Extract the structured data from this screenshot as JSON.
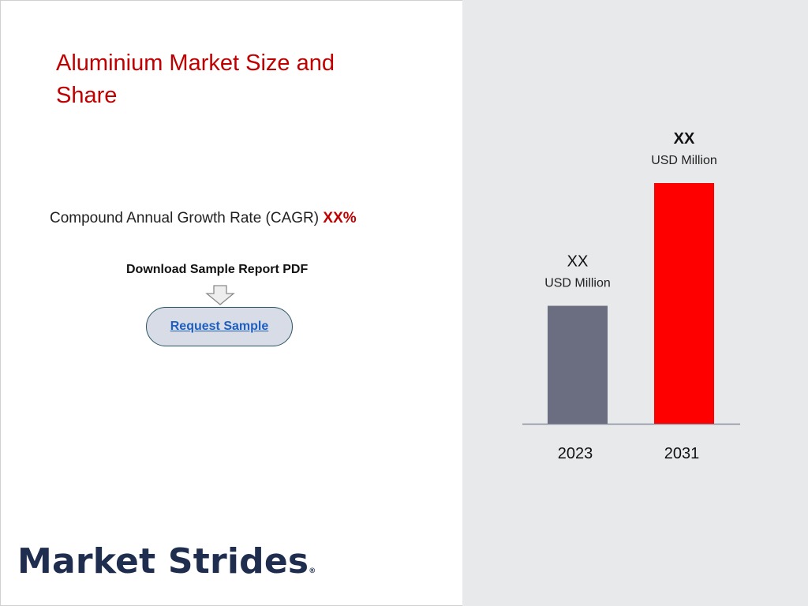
{
  "page": {
    "title": "Aluminium Market Size and Share",
    "cagr_label": "Compound Annual Growth Rate (CAGR)",
    "cagr_value": "XX%",
    "download_label": "Download Sample Report PDF",
    "request_button": "Request Sample",
    "logo_text": "Market Strides",
    "logo_mark": "®"
  },
  "colors": {
    "title": "#c00000",
    "accent": "#c00000",
    "panel_bg": "#e8e9eb",
    "bar_2023": "#6b6e80",
    "bar_2031": "#ff0000",
    "logo": "#1f2d4e"
  },
  "chart_data": {
    "type": "bar",
    "categories": [
      "2023",
      "2031"
    ],
    "values": [
      49,
      100
    ],
    "value_labels": [
      "XX",
      "XX"
    ],
    "unit_labels": [
      "USD Million",
      "USD Million"
    ],
    "ylim": [
      0,
      100
    ],
    "grid": false,
    "legend": "none"
  }
}
